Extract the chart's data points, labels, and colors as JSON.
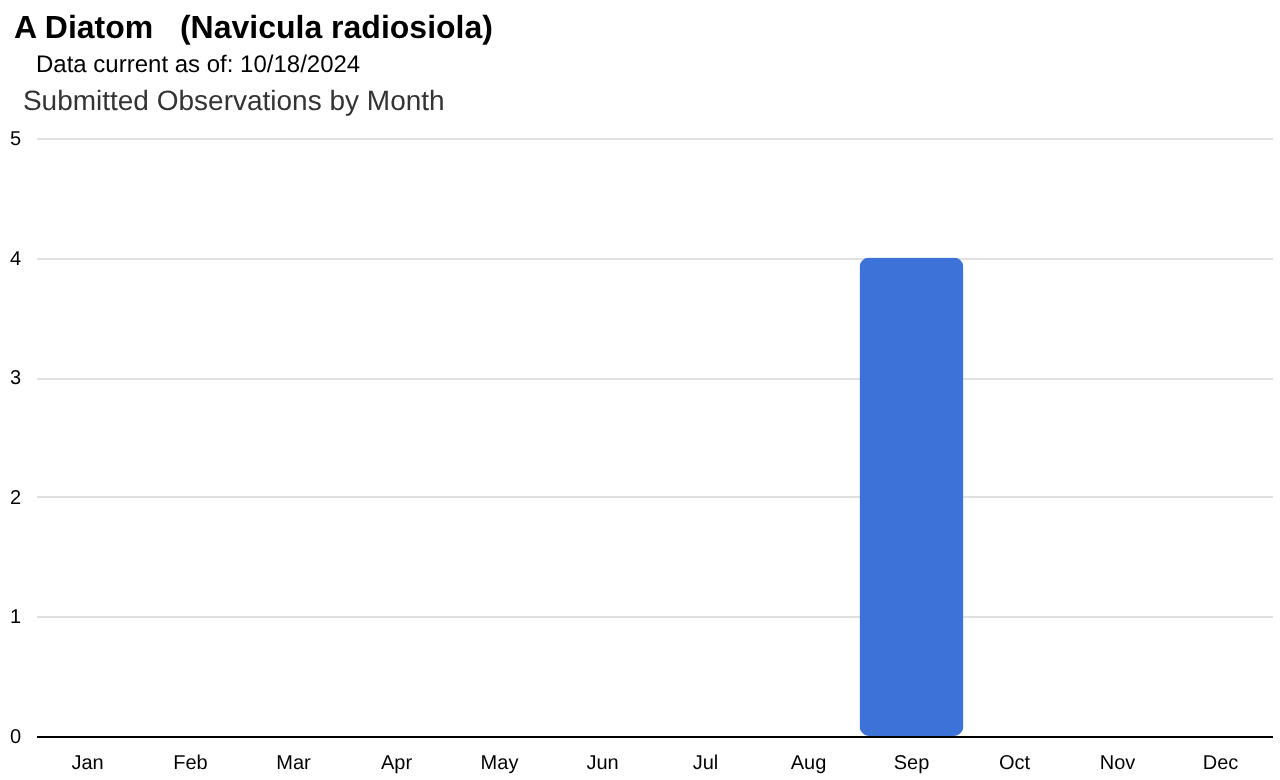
{
  "chart_data": {
    "type": "bar",
    "title": "A Diatom   (Navicula radiosiola)",
    "subtitle": "Data current as of: 10/18/2024",
    "annotations": [
      "Submitted Observations by Month"
    ],
    "categories": [
      "Jan",
      "Feb",
      "Mar",
      "Apr",
      "May",
      "Jun",
      "Jul",
      "Aug",
      "Sep",
      "Oct",
      "Nov",
      "Dec"
    ],
    "values": [
      0,
      0,
      0,
      0,
      0,
      0,
      0,
      0,
      4,
      0,
      0,
      0
    ],
    "color": "#3d72d9",
    "ylim": [
      0,
      5
    ],
    "yticks": [
      0,
      1,
      2,
      3,
      4,
      5
    ],
    "grid": "y"
  }
}
